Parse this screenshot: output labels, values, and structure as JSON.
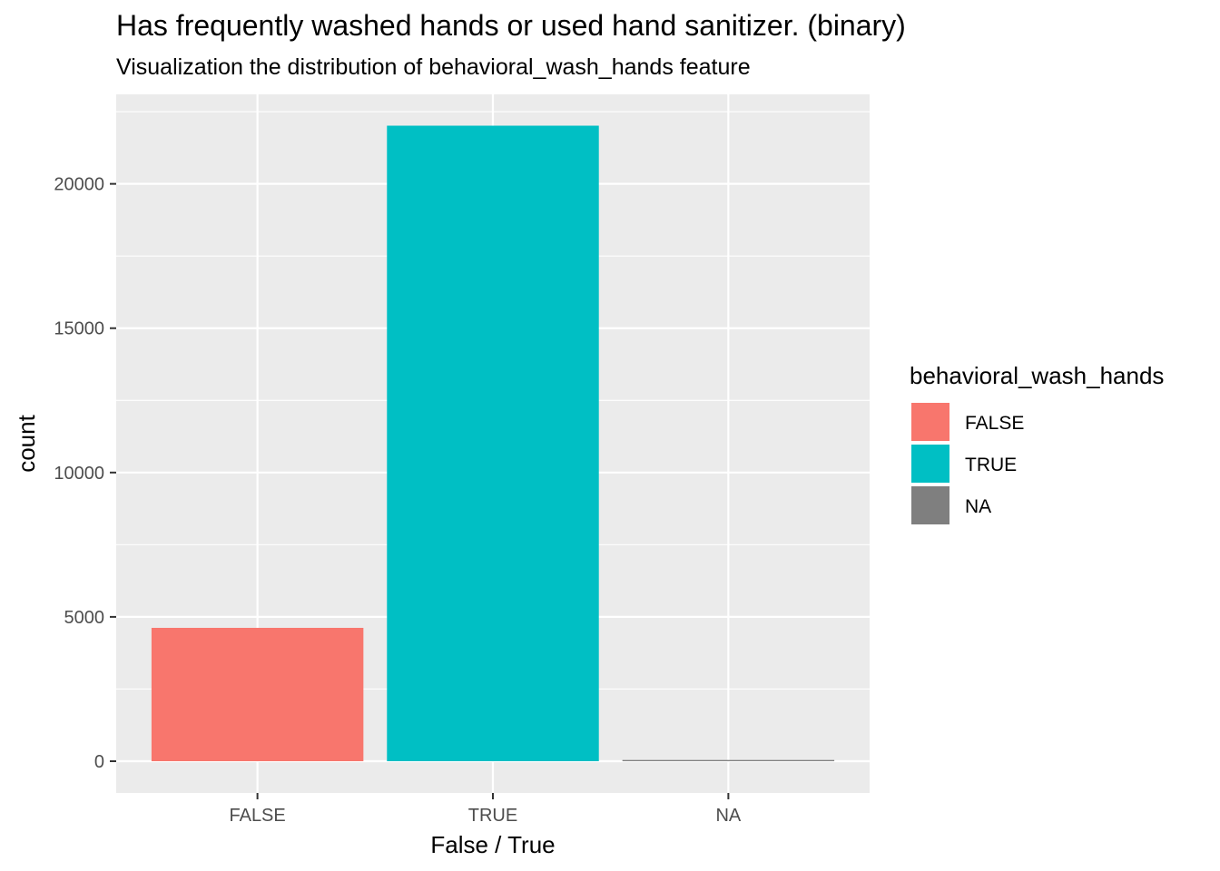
{
  "chart_data": {
    "type": "bar",
    "title": "Has frequently washed hands or used hand sanitizer. (binary)",
    "subtitle": "Visualization the distribution of behavioral_wash_hands feature",
    "xlabel": "False / True",
    "ylabel": "count",
    "categories": [
      "FALSE",
      "TRUE",
      "NA"
    ],
    "values": [
      4620,
      22015,
      42
    ],
    "colors": [
      "#F8766D",
      "#00BFC4",
      "#7F7F7F"
    ],
    "ylim": [
      -1100,
      23100
    ],
    "yticks": [
      0,
      5000,
      10000,
      15000,
      20000
    ],
    "ytick_labels": [
      "0",
      "5000",
      "10000",
      "15000",
      "20000"
    ],
    "grid": true,
    "panel_background": "#EBEBEB",
    "legend": {
      "title": "behavioral_wash_hands",
      "position": "right",
      "entries": [
        {
          "label": "FALSE",
          "color": "#F8766D"
        },
        {
          "label": "TRUE",
          "color": "#00BFC4"
        },
        {
          "label": "NA",
          "color": "#7F7F7F"
        }
      ]
    }
  }
}
